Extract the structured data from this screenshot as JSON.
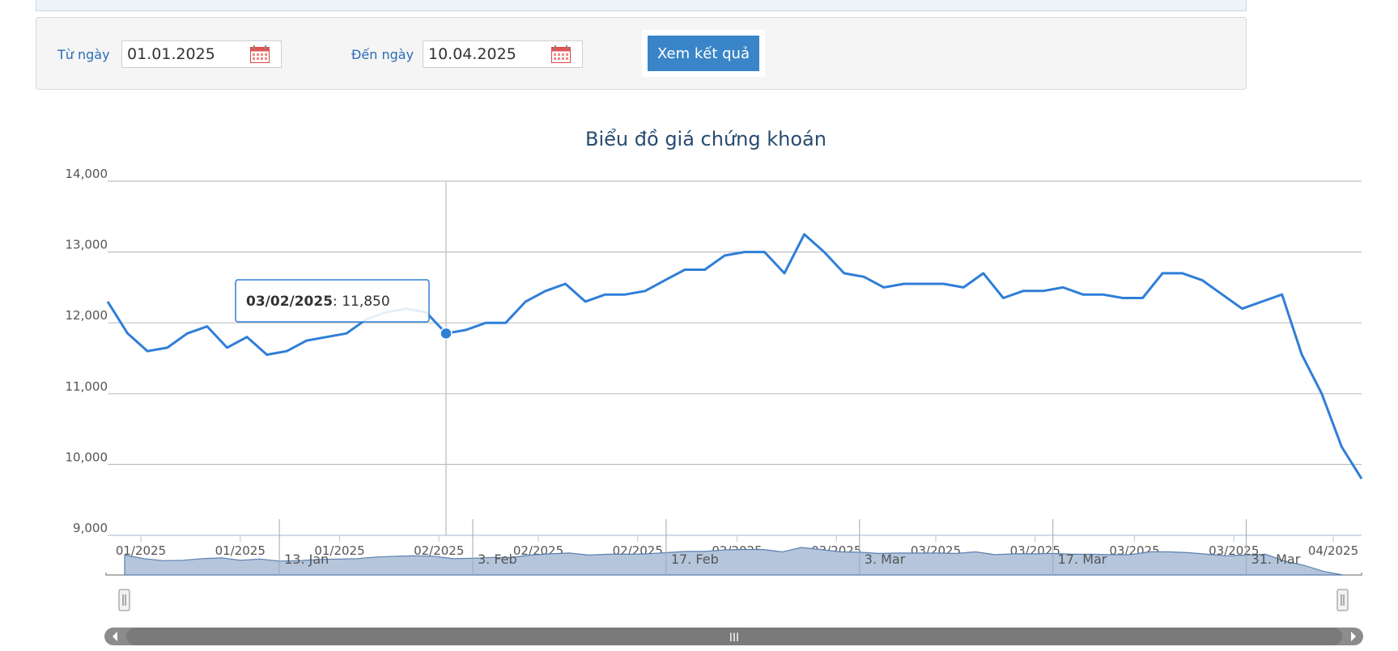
{
  "filter": {
    "from_label": "Từ ngày",
    "from_value": "01.01.2025",
    "to_label": "Đến ngày",
    "to_value": "10.04.2025",
    "submit_label": "Xem kết quả"
  },
  "colors": {
    "line": "#2f7ed8",
    "accent": "#3a85c7",
    "navigator_fill": "#b5c6dc",
    "label": "#2a6db5"
  },
  "icons": {
    "calendar": "calendar-icon"
  },
  "chart_data": {
    "type": "line",
    "title": "Biểu đồ giá chứng khoán",
    "xlabel": "",
    "ylabel": "",
    "ylim": [
      9000,
      14000
    ],
    "yticks": [
      "14,000",
      "13,000",
      "12,000",
      "11,000",
      "10,000",
      "9,000"
    ],
    "xticks": [
      "01/2025",
      "01/2025",
      "01/2025",
      "02/2025",
      "02/2025",
      "02/2025",
      "02/2025",
      "03/2025",
      "03/2025",
      "03/2025",
      "03/2025",
      "03/2025",
      "04/2025"
    ],
    "grid": true,
    "legend": "none",
    "series": [
      {
        "values": [
          12300,
          11850,
          11600,
          11650,
          11850,
          11950,
          11650,
          11800,
          11550,
          11600,
          11750,
          11800,
          11850,
          12050,
          12150,
          12200,
          12150,
          11850,
          11900,
          12000,
          12000,
          12300,
          12450,
          12550,
          12300,
          12400,
          12400,
          12450,
          12600,
          12750,
          12750,
          12950,
          13000,
          13000,
          12700,
          13250,
          13000,
          12700,
          12650,
          12500,
          12550,
          12550,
          12550,
          12500,
          12700,
          12350,
          12450,
          12450,
          12500,
          12400,
          12400,
          12350,
          12350,
          12700,
          12700,
          12600,
          12400,
          12200,
          12300,
          12400,
          11550,
          11000,
          10250,
          9800
        ]
      }
    ],
    "tooltip": {
      "date": "03/02/2025",
      "value": "11,850",
      "index": 17
    },
    "navigator": {
      "labels": [
        "13. Jan",
        "3. Feb",
        "17. Feb",
        "3. Mar",
        "17. Mar",
        "31. Mar"
      ],
      "label_index": [
        8,
        18,
        28,
        38,
        48,
        58
      ],
      "scroll_label": "III"
    }
  }
}
